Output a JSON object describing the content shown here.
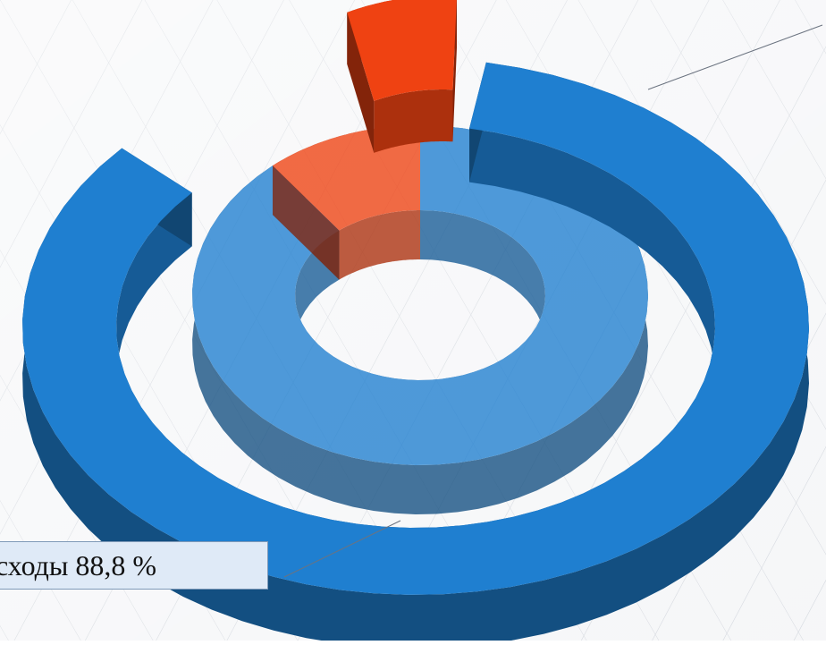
{
  "chart_data": {
    "type": "pie",
    "style": "3d-doughnut",
    "series": [
      {
        "values": [
          88.8,
          11.2
        ],
        "colors": [
          "#1f7fd0",
          "#ef4212"
        ]
      }
    ],
    "data_labels": [
      "сходы 88,8 %"
    ],
    "legend": "none",
    "grid": false
  }
}
